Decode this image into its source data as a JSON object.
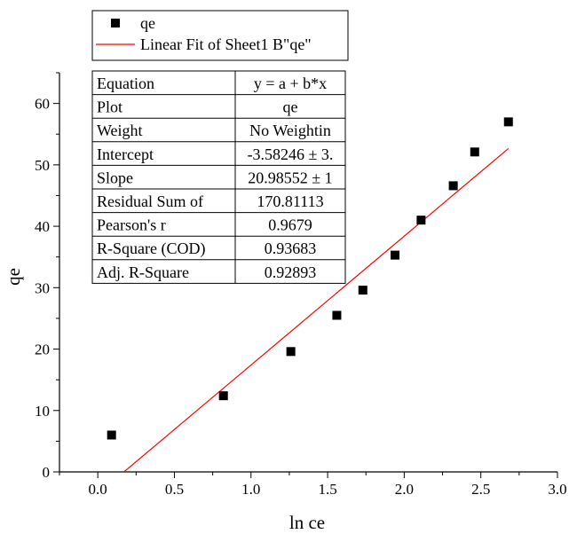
{
  "chart_data": {
    "type": "scatter",
    "xlabel": "ln ce",
    "ylabel": "qe",
    "xlim": [
      -0.25,
      3.0
    ],
    "ylim": [
      0,
      65
    ],
    "x_ticks": [
      "0.0",
      "0.5",
      "1.0",
      "1.5",
      "2.0",
      "2.5",
      "3.0"
    ],
    "y_ticks": [
      "0",
      "10",
      "20",
      "30",
      "40",
      "50",
      "60"
    ],
    "grid": false,
    "legend_placement": "top-left",
    "series": [
      {
        "name": "qe",
        "kind": "scatter",
        "marker": "square",
        "color": "#000000",
        "x": [
          0.09,
          0.82,
          1.26,
          1.56,
          1.73,
          1.94,
          2.11,
          2.32,
          2.46,
          2.68
        ],
        "y": [
          6.0,
          12.4,
          19.6,
          25.5,
          29.6,
          35.3,
          41.0,
          46.6,
          52.1,
          57.0
        ]
      },
      {
        "name": "Linear Fit of Sheet1 B\"qe\"",
        "kind": "line",
        "color": "#ff0000",
        "intercept": -3.58246,
        "slope": 20.98552,
        "x_range": [
          0.17,
          2.68
        ]
      }
    ],
    "fit_table": [
      {
        "label": "Equation",
        "value": "y = a + b*x"
      },
      {
        "label": "Plot",
        "value": "qe"
      },
      {
        "label": "Weight",
        "value": "No Weightin"
      },
      {
        "label": "Intercept",
        "value": "-3.58246 ± 3."
      },
      {
        "label": "Slope",
        "value": "20.98552 ± 1"
      },
      {
        "label": "Residual Sum of",
        "value": "170.81113"
      },
      {
        "label": "Pearson's r",
        "value": "0.9679"
      },
      {
        "label": "R-Square (COD)",
        "value": "0.93683"
      },
      {
        "label": "Adj. R-Square",
        "value": "0.92893"
      }
    ]
  }
}
